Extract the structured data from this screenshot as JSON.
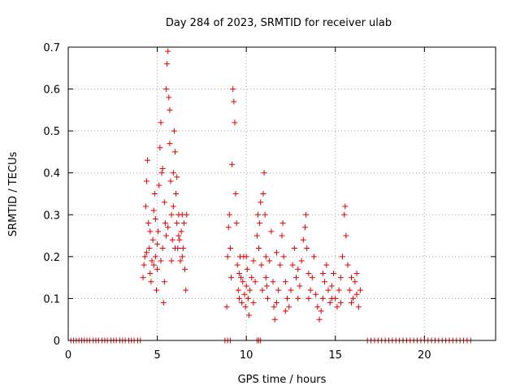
{
  "chart_data": {
    "type": "scatter",
    "title": "Day 284 of 2023, SRMTID for receiver ulab",
    "xlabel": "GPS time / hours",
    "ylabel": "SRMTID / TECUs",
    "xlim": [
      0,
      24.0
    ],
    "ylim": [
      0,
      0.7
    ],
    "xticks": [
      0,
      5,
      10,
      15,
      20
    ],
    "xtick_labels": [
      "0",
      "5",
      "10",
      "15",
      "20"
    ],
    "yticks": [
      0,
      0.1,
      0.2,
      0.3,
      0.4,
      0.5,
      0.6,
      0.7
    ],
    "ytick_labels": [
      "0",
      "0.1",
      "0.2",
      "0.3",
      "0.4",
      "0.5",
      "0.6",
      "0.7"
    ],
    "grid": true,
    "marker": "+",
    "color": "#e00000",
    "series": [
      {
        "name": "SRMTID",
        "points": [
          [
            0.15,
            0
          ],
          [
            0.3,
            0
          ],
          [
            0.45,
            0
          ],
          [
            0.6,
            0
          ],
          [
            0.75,
            0
          ],
          [
            0.9,
            0
          ],
          [
            1.05,
            0
          ],
          [
            1.2,
            0
          ],
          [
            1.4,
            0
          ],
          [
            1.55,
            0
          ],
          [
            1.7,
            0
          ],
          [
            1.9,
            0
          ],
          [
            2.05,
            0
          ],
          [
            2.2,
            0
          ],
          [
            2.4,
            0
          ],
          [
            2.55,
            0
          ],
          [
            2.7,
            0
          ],
          [
            2.9,
            0
          ],
          [
            3.05,
            0
          ],
          [
            3.2,
            0
          ],
          [
            3.4,
            0
          ],
          [
            3.55,
            0
          ],
          [
            3.7,
            0
          ],
          [
            3.9,
            0
          ],
          [
            4.05,
            0
          ],
          [
            4.2,
            0.15
          ],
          [
            4.25,
            0.18
          ],
          [
            4.3,
            0.2
          ],
          [
            4.35,
            0.32
          ],
          [
            4.4,
            0.38
          ],
          [
            4.45,
            0.43
          ],
          [
            4.5,
            0.28
          ],
          [
            4.55,
            0.22
          ],
          [
            4.6,
            0.16
          ],
          [
            4.65,
            0.14
          ],
          [
            4.7,
            0.19
          ],
          [
            4.75,
            0.24
          ],
          [
            4.8,
            0.31
          ],
          [
            4.85,
            0.35
          ],
          [
            4.9,
            0.2
          ],
          [
            4.95,
            0.12
          ],
          [
            5.0,
            0.17
          ],
          [
            5.05,
            0.26
          ],
          [
            5.1,
            0.37
          ],
          [
            5.15,
            0.46
          ],
          [
            5.2,
            0.52
          ],
          [
            5.25,
            0.4
          ],
          [
            5.3,
            0.22
          ],
          [
            5.35,
            0.09
          ],
          [
            5.4,
            0.14
          ],
          [
            5.45,
            0.28
          ],
          [
            5.5,
            0.6
          ],
          [
            5.55,
            0.66
          ],
          [
            5.6,
            0.69
          ],
          [
            5.65,
            0.58
          ],
          [
            5.7,
            0.47
          ],
          [
            5.75,
            0.38
          ],
          [
            5.8,
            0.3
          ],
          [
            5.85,
            0.24
          ],
          [
            5.9,
            0.32
          ],
          [
            5.95,
            0.5
          ],
          [
            6.0,
            0.45
          ],
          [
            6.05,
            0.35
          ],
          [
            6.1,
            0.28
          ],
          [
            6.15,
            0.22
          ],
          [
            6.2,
            0.3
          ],
          [
            6.25,
            0.24
          ],
          [
            6.3,
            0.19
          ],
          [
            6.35,
            0.26
          ],
          [
            6.4,
            0.3
          ],
          [
            6.45,
            0.22
          ],
          [
            6.5,
            0.28
          ],
          [
            6.55,
            0.17
          ],
          [
            6.6,
            0.12
          ],
          [
            6.65,
            0.3
          ],
          [
            4.4,
            0.21
          ],
          [
            4.6,
            0.26
          ],
          [
            4.8,
            0.18
          ],
          [
            5.0,
            0.23
          ],
          [
            5.2,
            0.19
          ],
          [
            5.4,
            0.33
          ],
          [
            5.6,
            0.27
          ],
          [
            5.8,
            0.19
          ],
          [
            6.0,
            0.22
          ],
          [
            6.2,
            0.25
          ],
          [
            6.4,
            0.2
          ],
          [
            5.3,
            0.41
          ],
          [
            5.7,
            0.55
          ],
          [
            5.9,
            0.4
          ],
          [
            5.5,
            0.25
          ],
          [
            4.9,
            0.29
          ],
          [
            6.1,
            0.39
          ],
          [
            8.8,
            0
          ],
          [
            8.95,
            0
          ],
          [
            9.1,
            0
          ],
          [
            10.6,
            0
          ],
          [
            10.7,
            0
          ],
          [
            10.8,
            0
          ],
          [
            8.9,
            0.08
          ],
          [
            8.95,
            0.2
          ],
          [
            9.0,
            0.27
          ],
          [
            9.05,
            0.3
          ],
          [
            9.1,
            0.22
          ],
          [
            9.15,
            0.15
          ],
          [
            9.2,
            0.42
          ],
          [
            9.25,
            0.6
          ],
          [
            9.3,
            0.57
          ],
          [
            9.35,
            0.52
          ],
          [
            9.4,
            0.35
          ],
          [
            9.45,
            0.28
          ],
          [
            9.5,
            0.18
          ],
          [
            9.55,
            0.12
          ],
          [
            9.6,
            0.1
          ],
          [
            9.65,
            0.2
          ],
          [
            9.7,
            0.15
          ],
          [
            9.75,
            0.09
          ],
          [
            9.8,
            0.14
          ],
          [
            9.85,
            0.2
          ],
          [
            9.9,
            0.11
          ],
          [
            9.95,
            0.08
          ],
          [
            10.0,
            0.13
          ],
          [
            10.05,
            0.17
          ],
          [
            10.1,
            0.1
          ],
          [
            10.15,
            0.06
          ],
          [
            10.2,
            0.12
          ],
          [
            10.3,
            0.15
          ],
          [
            10.4,
            0.19
          ],
          [
            10.5,
            0.14
          ],
          [
            10.6,
            0.25
          ],
          [
            10.65,
            0.3
          ],
          [
            10.7,
            0.22
          ],
          [
            10.75,
            0.28
          ],
          [
            10.8,
            0.33
          ],
          [
            10.85,
            0.18
          ],
          [
            10.9,
            0.12
          ],
          [
            10.95,
            0.35
          ],
          [
            11.0,
            0.4
          ],
          [
            11.05,
            0.3
          ],
          [
            11.1,
            0.2
          ],
          [
            11.15,
            0.13
          ],
          [
            11.2,
            0.1
          ],
          [
            11.3,
            0.19
          ],
          [
            11.4,
            0.26
          ],
          [
            11.5,
            0.14
          ],
          [
            11.55,
            0.08
          ],
          [
            11.6,
            0.05
          ],
          [
            11.7,
            0.09
          ],
          [
            11.8,
            0.12
          ],
          [
            11.9,
            0.18
          ],
          [
            12.0,
            0.25
          ],
          [
            12.05,
            0.28
          ],
          [
            12.1,
            0.2
          ],
          [
            12.2,
            0.14
          ],
          [
            12.3,
            0.1
          ],
          [
            12.4,
            0.08
          ],
          [
            12.5,
            0.12
          ],
          [
            12.6,
            0.18
          ],
          [
            12.7,
            0.22
          ],
          [
            12.8,
            0.15
          ],
          [
            12.9,
            0.1
          ],
          [
            13.0,
            0.13
          ],
          [
            13.1,
            0.19
          ],
          [
            13.2,
            0.24
          ],
          [
            13.3,
            0.27
          ],
          [
            13.35,
            0.3
          ],
          [
            13.4,
            0.22
          ],
          [
            13.5,
            0.16
          ],
          [
            13.6,
            0.12
          ],
          [
            13.7,
            0.15
          ],
          [
            13.8,
            0.2
          ],
          [
            13.9,
            0.11
          ],
          [
            14.0,
            0.08
          ],
          [
            14.1,
            0.05
          ],
          [
            14.2,
            0.07
          ],
          [
            14.3,
            0.1
          ],
          [
            14.4,
            0.14
          ],
          [
            14.5,
            0.18
          ],
          [
            14.6,
            0.12
          ],
          [
            14.7,
            0.09
          ],
          [
            14.8,
            0.13
          ],
          [
            14.9,
            0.16
          ],
          [
            15.0,
            0.1
          ],
          [
            15.1,
            0.08
          ],
          [
            15.2,
            0.12
          ],
          [
            15.3,
            0.15
          ],
          [
            15.4,
            0.2
          ],
          [
            15.5,
            0.3
          ],
          [
            15.55,
            0.32
          ],
          [
            15.6,
            0.25
          ],
          [
            15.7,
            0.18
          ],
          [
            15.8,
            0.12
          ],
          [
            15.9,
            0.09
          ],
          [
            16.0,
            0.1
          ],
          [
            16.1,
            0.14
          ],
          [
            16.2,
            0.11
          ],
          [
            16.3,
            0.08
          ],
          [
            16.4,
            0.12
          ],
          [
            9.6,
            0.16
          ],
          [
            10.0,
            0.2
          ],
          [
            10.4,
            0.09
          ],
          [
            11.1,
            0.15
          ],
          [
            11.7,
            0.21
          ],
          [
            12.2,
            0.07
          ],
          [
            12.9,
            0.17
          ],
          [
            13.5,
            0.1
          ],
          [
            14.3,
            0.16
          ],
          [
            14.8,
            0.1
          ],
          [
            15.3,
            0.09
          ],
          [
            15.9,
            0.15
          ],
          [
            16.2,
            0.16
          ],
          [
            16.8,
            0
          ],
          [
            17.0,
            0
          ],
          [
            17.2,
            0
          ],
          [
            17.4,
            0
          ],
          [
            17.6,
            0
          ],
          [
            17.8,
            0
          ],
          [
            18.0,
            0
          ],
          [
            18.2,
            0
          ],
          [
            18.4,
            0
          ],
          [
            18.6,
            0
          ],
          [
            18.8,
            0
          ],
          [
            19.0,
            0
          ],
          [
            19.2,
            0
          ],
          [
            19.4,
            0
          ],
          [
            19.6,
            0
          ],
          [
            19.8,
            0
          ],
          [
            20.0,
            0
          ],
          [
            20.2,
            0
          ],
          [
            20.4,
            0
          ],
          [
            20.6,
            0
          ],
          [
            20.8,
            0
          ],
          [
            21.0,
            0
          ],
          [
            21.2,
            0
          ],
          [
            21.4,
            0
          ],
          [
            21.6,
            0
          ],
          [
            21.8,
            0
          ],
          [
            22.0,
            0
          ],
          [
            22.2,
            0
          ],
          [
            22.4,
            0
          ],
          [
            22.6,
            0
          ]
        ]
      }
    ]
  }
}
